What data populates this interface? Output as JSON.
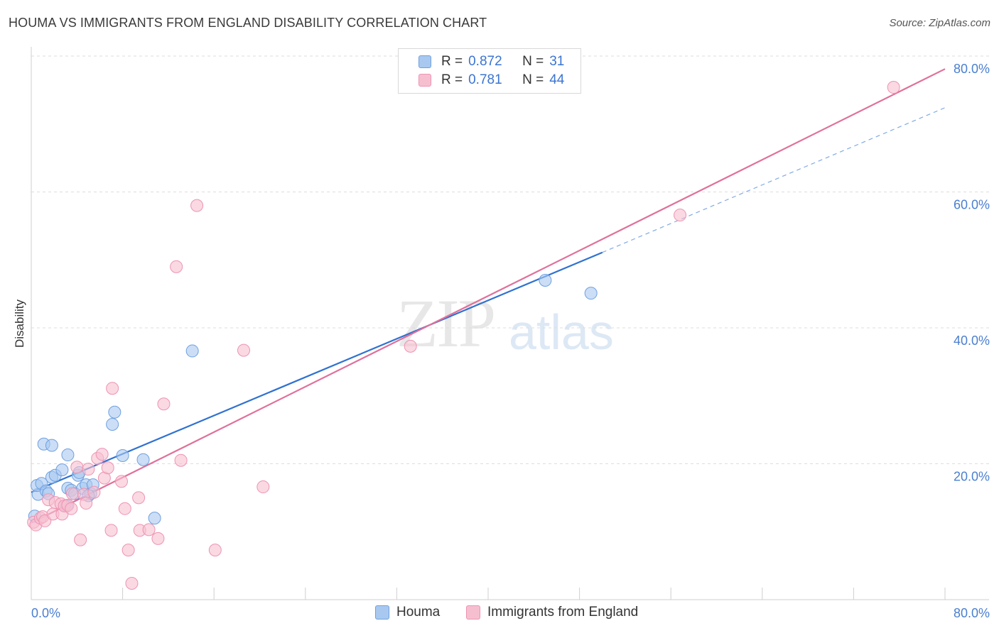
{
  "title": "HOUMA VS IMMIGRANTS FROM ENGLAND DISABILITY CORRELATION CHART",
  "source": "Source: ZipAtlas.com",
  "watermark": {
    "zip": "ZIP",
    "atlas": "atlas"
  },
  "legend": {
    "r_label": "R =",
    "n_label": "N =",
    "houma": {
      "r": "0.872",
      "n": "31"
    },
    "england": {
      "r": "0.781",
      "n": "44"
    }
  },
  "colors": {
    "houma_fill": "#a8c8f0",
    "houma_stroke": "#6fa0e0",
    "houma_line": "#2f72d0",
    "england_fill": "#f6bfd0",
    "england_stroke": "#ee93b1",
    "england_line": "#e0709a",
    "tick_text": "#4a7fd0",
    "grid": "#dddddd"
  },
  "chart_data": {
    "type": "scatter",
    "title": "HOUMA VS IMMIGRANTS FROM ENGLAND DISABILITY CORRELATION CHART",
    "xlabel": "",
    "ylabel": "Disability",
    "xlim": [
      0,
      80
    ],
    "ylim": [
      0,
      80
    ],
    "x_tick_labels": [
      "0.0%",
      "80.0%"
    ],
    "y_tick_labels": [
      "20.0%",
      "40.0%",
      "60.0%",
      "80.0%"
    ],
    "y_ticks": [
      20,
      40,
      60,
      80
    ],
    "grid": true,
    "legend_position": "top-center",
    "series": [
      {
        "name": "Houma",
        "points": [
          [
            0.3,
            12.3
          ],
          [
            0.6,
            15.5
          ],
          [
            0.5,
            16.8
          ],
          [
            0.9,
            17.1
          ],
          [
            1.1,
            22.9
          ],
          [
            1.3,
            16.0
          ],
          [
            1.5,
            15.6
          ],
          [
            1.8,
            22.7
          ],
          [
            1.8,
            18.0
          ],
          [
            2.1,
            18.3
          ],
          [
            2.7,
            19.1
          ],
          [
            3.1,
            13.8
          ],
          [
            3.2,
            16.4
          ],
          [
            3.2,
            21.3
          ],
          [
            3.5,
            16.1
          ],
          [
            3.8,
            15.6
          ],
          [
            4.1,
            18.3
          ],
          [
            4.2,
            18.7
          ],
          [
            4.5,
            16.4
          ],
          [
            4.8,
            16.9
          ],
          [
            5.2,
            15.6
          ],
          [
            5.4,
            16.9
          ],
          [
            7.1,
            25.8
          ],
          [
            7.3,
            27.6
          ],
          [
            8.0,
            21.2
          ],
          [
            9.8,
            20.6
          ],
          [
            10.8,
            12.0
          ],
          [
            14.1,
            36.6
          ],
          [
            45.0,
            47.0
          ],
          [
            49.0,
            45.1
          ],
          [
            5.0,
            15.3
          ]
        ]
      },
      {
        "name": "Immigrants from England",
        "points": [
          [
            0.2,
            11.4
          ],
          [
            0.4,
            11.0
          ],
          [
            0.8,
            12.0
          ],
          [
            1.0,
            12.2
          ],
          [
            1.2,
            11.6
          ],
          [
            1.5,
            14.7
          ],
          [
            1.9,
            12.6
          ],
          [
            2.1,
            14.3
          ],
          [
            2.6,
            14.1
          ],
          [
            2.7,
            12.6
          ],
          [
            2.9,
            13.8
          ],
          [
            3.2,
            13.9
          ],
          [
            3.5,
            13.4
          ],
          [
            3.6,
            15.6
          ],
          [
            4.0,
            19.5
          ],
          [
            4.3,
            8.8
          ],
          [
            4.6,
            15.5
          ],
          [
            4.8,
            14.2
          ],
          [
            5.0,
            19.2
          ],
          [
            5.5,
            15.8
          ],
          [
            5.8,
            20.8
          ],
          [
            6.2,
            21.4
          ],
          [
            6.4,
            17.9
          ],
          [
            6.7,
            19.4
          ],
          [
            7.1,
            31.1
          ],
          [
            7.0,
            10.2
          ],
          [
            7.9,
            17.4
          ],
          [
            8.2,
            13.4
          ],
          [
            8.5,
            7.3
          ],
          [
            8.8,
            2.4
          ],
          [
            9.4,
            15.0
          ],
          [
            9.5,
            10.2
          ],
          [
            10.3,
            10.3
          ],
          [
            11.1,
            9.0
          ],
          [
            11.6,
            28.8
          ],
          [
            12.7,
            49.0
          ],
          [
            13.1,
            20.5
          ],
          [
            14.5,
            58.0
          ],
          [
            16.1,
            7.3
          ],
          [
            18.6,
            36.7
          ],
          [
            20.3,
            16.6
          ],
          [
            33.2,
            37.3
          ],
          [
            56.8,
            56.6
          ],
          [
            75.5,
            75.4
          ]
        ]
      }
    ],
    "trend_lines": [
      {
        "series": "Houma",
        "from": [
          0,
          15.8
        ],
        "to": [
          50,
          51.1
        ],
        "dashed_extension_to": [
          80,
          72.4
        ]
      },
      {
        "series": "Immigrants from England",
        "from": [
          0,
          11.3
        ],
        "to": [
          80,
          78.1
        ]
      }
    ]
  }
}
